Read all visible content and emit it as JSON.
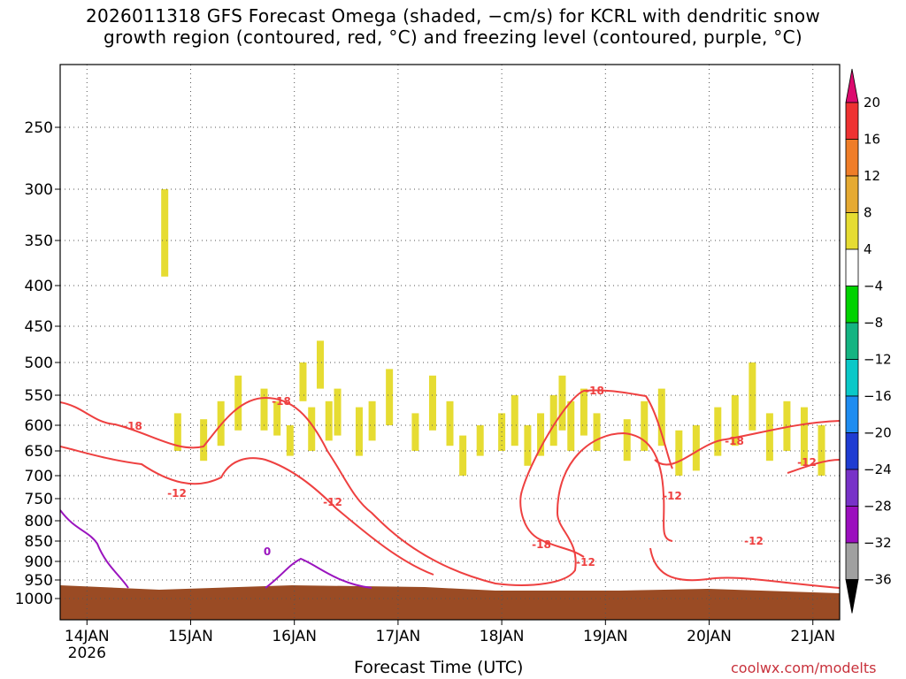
{
  "title": {
    "line1": "2026011318 GFS Forecast Omega (shaded, −cm/s) for KCRL with dendritic snow",
    "line2": "growth region (contoured, red, °C) and freezing level (contoured, purple, °C)"
  },
  "xlabel": "Forecast Time (UTC)",
  "credit": "coolwx.com/modelts",
  "chart_data": {
    "type": "heatmap",
    "title": "2026011318 GFS Forecast Omega (shaded, −cm/s) for KCRL with dendritic snow growth region (contoured, red, °C) and freezing level (contoured, purple, °C)",
    "xlabel": "Forecast Time (UTC)",
    "ylabel": "",
    "x_ticks": [
      {
        "label": "14JAN",
        "sublabel": "2026",
        "t": 0
      },
      {
        "label": "15JAN",
        "t": 24
      },
      {
        "label": "16JAN",
        "t": 48
      },
      {
        "label": "17JAN",
        "t": 72
      },
      {
        "label": "18JAN",
        "t": 96
      },
      {
        "label": "19JAN",
        "t": 120
      },
      {
        "label": "20JAN",
        "t": 144
      },
      {
        "label": "21JAN",
        "t": 168
      }
    ],
    "xlim": [
      -6.2,
      174.2
    ],
    "y_ticks": [
      250,
      300,
      350,
      400,
      450,
      500,
      550,
      600,
      650,
      700,
      750,
      800,
      850,
      900,
      950,
      1000
    ],
    "ylim": [
      200,
      1025
    ],
    "y_scale": "pressure (hPa), inverted",
    "grid": true,
    "colorbar": {
      "levels": [
        20,
        16,
        12,
        8,
        4,
        -4,
        -8,
        -12,
        -16,
        -20,
        -24,
        -28,
        -32,
        -36
      ],
      "colors": [
        "#dc0a6e",
        "#ee3232",
        "#ef7d28",
        "#e6aa32",
        "#e6dc32",
        "#ffffff",
        "#00d200",
        "#14b482",
        "#0ac8c8",
        "#1e8cf0",
        "#1e3cd2",
        "#7832c8",
        "#9b0fbe",
        "#a0a0a0",
        "#000000"
      ]
    },
    "omega_regions": [
      {
        "t": 18,
        "p0": 300,
        "p1": 390,
        "value": 5
      },
      {
        "t": 41,
        "p0": 540,
        "p1": 610,
        "value": 5
      },
      {
        "t": 44,
        "p0": 560,
        "p1": 620,
        "value": 5
      },
      {
        "t": 50,
        "p0": 500,
        "p1": 560,
        "value": 5
      },
      {
        "t": 54,
        "p0": 470,
        "p1": 540,
        "value": 5
      },
      {
        "t": 58,
        "p0": 540,
        "p1": 620,
        "value": 5
      },
      {
        "t": 66,
        "p0": 560,
        "p1": 630,
        "value": 5
      },
      {
        "t": 70,
        "p0": 510,
        "p1": 600,
        "value": 5
      },
      {
        "t": 80,
        "p0": 520,
        "p1": 610,
        "value": 5
      },
      {
        "t": 87,
        "p0": 620,
        "p1": 700,
        "value": 5
      },
      {
        "t": 91,
        "p0": 600,
        "p1": 660,
        "value": 5
      },
      {
        "t": 99,
        "p0": 550,
        "p1": 640,
        "value": 5
      },
      {
        "t": 105,
        "p0": 580,
        "p1": 660,
        "value": 5
      },
      {
        "t": 110,
        "p0": 520,
        "p1": 610,
        "value": 5
      },
      {
        "t": 115,
        "p0": 540,
        "p1": 620,
        "value": 5
      },
      {
        "t": 118,
        "p0": 580,
        "p1": 650,
        "value": 5
      },
      {
        "t": 137,
        "p0": 610,
        "p1": 700,
        "value": 5
      },
      {
        "t": 154,
        "p0": 500,
        "p1": 610,
        "value": 5
      },
      {
        "t": 162,
        "p0": 560,
        "p1": 650,
        "value": 5
      },
      {
        "t": 166,
        "p0": 570,
        "p1": 680,
        "value": 5
      },
      {
        "t": 21,
        "p0": 580,
        "p1": 650,
        "value": 5
      },
      {
        "t": 27,
        "p0": 590,
        "p1": 670,
        "value": 5
      },
      {
        "t": 31,
        "p0": 560,
        "p1": 640,
        "value": 5
      },
      {
        "t": 35,
        "p0": 520,
        "p1": 610,
        "value": 5
      },
      {
        "t": 47,
        "p0": 600,
        "p1": 660,
        "value": 5
      },
      {
        "t": 52,
        "p0": 570,
        "p1": 650,
        "value": 5
      },
      {
        "t": 56,
        "p0": 560,
        "p1": 630,
        "value": 5
      },
      {
        "t": 63,
        "p0": 570,
        "p1": 660,
        "value": 5
      },
      {
        "t": 76,
        "p0": 580,
        "p1": 650,
        "value": 5
      },
      {
        "t": 84,
        "p0": 560,
        "p1": 640,
        "value": 5
      },
      {
        "t": 96,
        "p0": 580,
        "p1": 650,
        "value": 5
      },
      {
        "t": 102,
        "p0": 600,
        "p1": 680,
        "value": 5
      },
      {
        "t": 108,
        "p0": 550,
        "p1": 640,
        "value": 5
      },
      {
        "t": 112,
        "p0": 560,
        "p1": 650,
        "value": 5
      },
      {
        "t": 125,
        "p0": 590,
        "p1": 670,
        "value": 5
      },
      {
        "t": 129,
        "p0": 560,
        "p1": 650,
        "value": 5
      },
      {
        "t": 133,
        "p0": 540,
        "p1": 640,
        "value": 5
      },
      {
        "t": 141,
        "p0": 600,
        "p1": 690,
        "value": 5
      },
      {
        "t": 146,
        "p0": 570,
        "p1": 660,
        "value": 5
      },
      {
        "t": 150,
        "p0": 550,
        "p1": 640,
        "value": 5
      },
      {
        "t": 158,
        "p0": 580,
        "p1": 670,
        "value": 5
      },
      {
        "t": 170,
        "p0": 600,
        "p1": 700,
        "value": 5
      }
    ]
  }
}
